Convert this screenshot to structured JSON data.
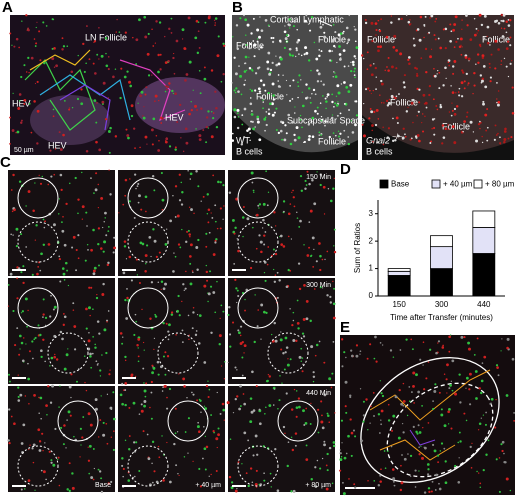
{
  "figure": {
    "panel_labels": [
      "A",
      "B",
      "C",
      "D",
      "E"
    ],
    "panel_a": {
      "region": "LN Follicle",
      "hev_labels": [
        "HEV",
        "HEV",
        "HEV"
      ],
      "scale_bar": "50 µm"
    },
    "panel_b": {
      "annotation": "Cortical Lymphatic",
      "left_follicles": [
        "Follicle",
        "Follicle",
        "Follicle",
        "Follicle"
      ],
      "subcapsular": "Subcapsular Space",
      "left_genotype": "WT",
      "left_cells": "B cells",
      "right_follicles": [
        "Follicle",
        "Follicle",
        "Follicle",
        "Follicle"
      ],
      "right_genotype": "Gnai2",
      "right_genotype_sup": "−/−",
      "right_cells": "B cells"
    },
    "panel_c": {
      "times": [
        "150 Min",
        "300 Min",
        "440 Min"
      ],
      "depths": [
        "Base",
        "+ 40 µm",
        "+ 80 µm"
      ]
    }
  },
  "chart_data": {
    "type": "stacked_bar",
    "categories": [
      "150",
      "300",
      "440"
    ],
    "series": [
      {
        "name": "Base",
        "color": "#000000",
        "values": [
          0.75,
          1.0,
          1.55
        ]
      },
      {
        "name": "+ 40 µm",
        "color": "#e2e2f7",
        "values": [
          0.15,
          0.8,
          0.95
        ]
      },
      {
        "name": "+ 80 µm",
        "color": "#ffffff",
        "values": [
          0.1,
          0.4,
          0.6
        ]
      }
    ],
    "ylabel": "Sum of Ratios",
    "xlabel": "Time after Transfer (minutes)",
    "ylim": [
      0,
      3.5
    ],
    "yticks": [
      0,
      1,
      2,
      3
    ]
  }
}
